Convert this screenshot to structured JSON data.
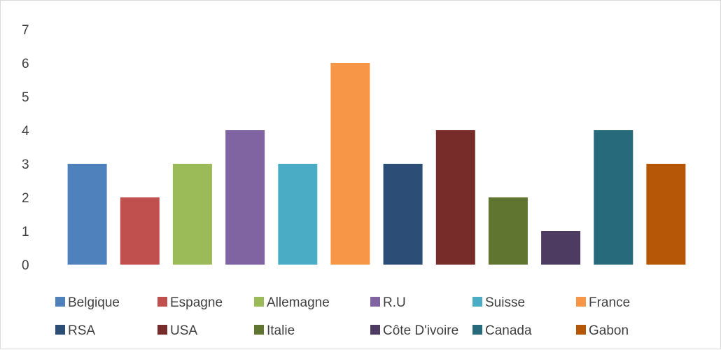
{
  "chart_data": {
    "type": "bar",
    "title": "",
    "xlabel": "",
    "ylabel": "",
    "ylim": [
      0,
      7
    ],
    "y_ticks": [
      "0",
      "1",
      "2",
      "3",
      "4",
      "5",
      "6",
      "7"
    ],
    "grid": false,
    "legend_position": "bottom",
    "categories": [
      "Belgique",
      "Espagne",
      "Allemagne",
      "R.U",
      "Suisse",
      "France",
      "RSA",
      "USA",
      "Italie",
      "Côte D'ivoire",
      "Canada",
      "Gabon"
    ],
    "values": [
      3,
      2,
      3,
      4,
      3,
      6,
      3,
      4,
      2,
      1,
      4,
      3
    ],
    "colors": [
      "#4f81bd",
      "#c0504d",
      "#9bbb59",
      "#8064a2",
      "#4bacc6",
      "#f79646",
      "#2c4d75",
      "#772c2a",
      "#5f7530",
      "#4d3b62",
      "#276a7c",
      "#b65708"
    ]
  }
}
